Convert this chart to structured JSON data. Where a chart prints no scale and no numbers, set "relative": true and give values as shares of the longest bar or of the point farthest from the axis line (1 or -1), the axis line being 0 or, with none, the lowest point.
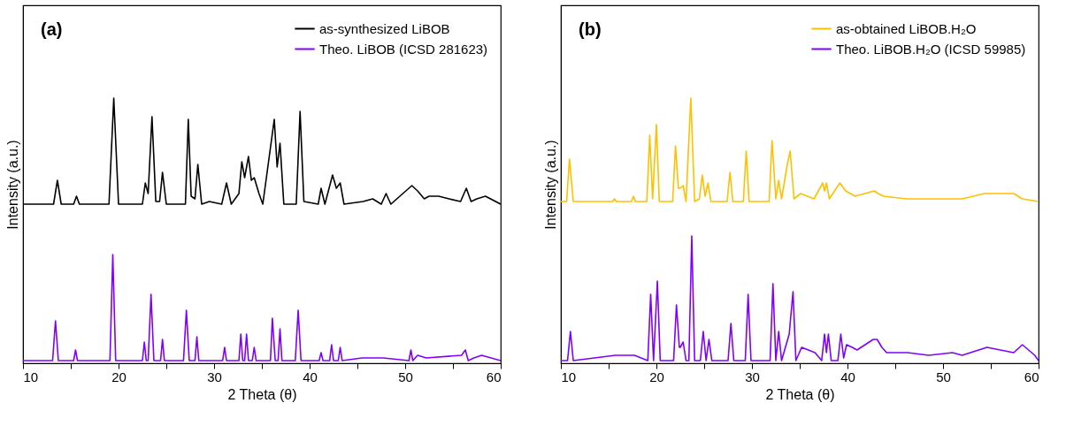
{
  "chart_data": [
    {
      "type": "line",
      "title": "(a)",
      "xlabel": "2 Theta (θ)",
      "ylabel": "Intensity (a.u.)",
      "relative": true,
      "legend": "top right",
      "xlim": [
        10,
        60
      ],
      "xticks": [
        10,
        {
          "value": 15,
          "label": null
        },
        20,
        {
          "value": 25,
          "label": null
        },
        30,
        {
          "value": 35,
          "label": null
        },
        40,
        {
          "value": 45,
          "label": null
        },
        50,
        {
          "value": 55,
          "label": null
        },
        60
      ],
      "series": [
        {
          "name": "as-synthesized LiBOB",
          "color": "#000000",
          "x": [
            10,
            13.2,
            13.6,
            14,
            15.3,
            15.6,
            15.9,
            19,
            19.5,
            20,
            22.5,
            22.8,
            23.1,
            23.5,
            23.9,
            24.3,
            24.6,
            25,
            27,
            27.3,
            27.6,
            28,
            28.3,
            28.7,
            29.5,
            30.8,
            31.3,
            31.8,
            32.6,
            32.9,
            33.2,
            33.6,
            33.9,
            34.2,
            34.7,
            35.1,
            36.3,
            36.6,
            36.9,
            37.3,
            38.6,
            39,
            39.4,
            40.9,
            41.2,
            41.6,
            42.4,
            42.8,
            43.2,
            43.6,
            45.6,
            46.6,
            47.5,
            48,
            48.5,
            50.7,
            51.3,
            52,
            52.5,
            53.5,
            54.6,
            55.8,
            56.4,
            56.9,
            57.5,
            58.4,
            60
          ],
          "values": [
            0.6,
            0.6,
            0.69,
            0.6,
            0.6,
            0.63,
            0.6,
            0.6,
            1.0,
            0.6,
            0.6,
            0.68,
            0.64,
            0.93,
            0.61,
            0.61,
            0.72,
            0.6,
            0.6,
            0.92,
            0.63,
            0.62,
            0.75,
            0.6,
            0.61,
            0.6,
            0.68,
            0.6,
            0.64,
            0.76,
            0.7,
            0.78,
            0.69,
            0.7,
            0.64,
            0.6,
            0.92,
            0.74,
            0.83,
            0.6,
            0.6,
            0.95,
            0.61,
            0.6,
            0.66,
            0.6,
            0.71,
            0.66,
            0.68,
            0.6,
            0.61,
            0.62,
            0.6,
            0.64,
            0.6,
            0.67,
            0.65,
            0.62,
            0.63,
            0.63,
            0.62,
            0.61,
            0.66,
            0.61,
            0.62,
            0.63,
            0.6
          ]
        },
        {
          "name": "Theo. LiBOB (ICSD 281623)",
          "color": "#8000ff",
          "x": [
            10,
            13.1,
            13.4,
            13.7,
            15.3,
            15.5,
            15.7,
            19.1,
            19.4,
            19.7,
            22.5,
            22.7,
            22.9,
            23.1,
            23.4,
            23.7,
            24.4,
            24.6,
            24.8,
            26.8,
            27.1,
            27.4,
            28,
            28.2,
            28.4,
            30.9,
            31.1,
            31.3,
            32.6,
            32.8,
            33,
            33.2,
            33.4,
            33.6,
            34,
            34.2,
            34.4,
            35.9,
            36.1,
            36.4,
            36.7,
            36.9,
            37.1,
            38.5,
            38.8,
            39.1,
            41,
            41.2,
            41.4,
            42.1,
            42.3,
            42.5,
            43,
            43.2,
            43.4,
            45.5,
            47.7,
            50.4,
            50.6,
            50.8,
            51.3,
            52.2,
            55.9,
            56.3,
            56.6,
            57.2,
            58,
            60
          ],
          "values": [
            0.01,
            0.01,
            0.16,
            0.01,
            0.01,
            0.05,
            0.01,
            0.01,
            0.41,
            0.01,
            0.01,
            0.08,
            0.01,
            0.01,
            0.26,
            0.01,
            0.01,
            0.09,
            0.01,
            0.01,
            0.2,
            0.01,
            0.01,
            0.1,
            0.01,
            0.01,
            0.06,
            0.01,
            0.01,
            0.11,
            0.01,
            0.01,
            0.11,
            0.01,
            0.01,
            0.06,
            0.01,
            0.01,
            0.17,
            0.01,
            0.01,
            0.13,
            0.01,
            0.01,
            0.2,
            0.01,
            0.01,
            0.04,
            0.01,
            0.01,
            0.07,
            0.01,
            0.01,
            0.06,
            0.01,
            0.02,
            0.02,
            0.01,
            0.05,
            0.01,
            0.03,
            0.02,
            0.03,
            0.05,
            0.01,
            0.02,
            0.03,
            0.01
          ]
        }
      ]
    },
    {
      "type": "line",
      "title": "(b)",
      "xlabel": "2 Theta (θ)",
      "ylabel": "Intensity (a.u.)",
      "relative": true,
      "legend": "top right",
      "xlim": [
        10,
        60
      ],
      "xticks": [
        10,
        {
          "value": 15,
          "label": null
        },
        20,
        {
          "value": 25,
          "label": null
        },
        30,
        {
          "value": 35,
          "label": null
        },
        40,
        {
          "value": 45,
          "label": null
        },
        50,
        {
          "value": 55,
          "label": null
        },
        60
      ],
      "series": [
        {
          "name": "as-obtained LiBOB.H₂O",
          "color": "#ffc000",
          "x": [
            10,
            10.6,
            10.9,
            11.3,
            15.4,
            15.6,
            15.8,
            17.4,
            17.6,
            17.8,
            19,
            19.3,
            19.6,
            20,
            20.3,
            21.7,
            22,
            22.3,
            22.5,
            22.8,
            23.1,
            23.6,
            24,
            24.5,
            24.8,
            25.1,
            25.4,
            25.7,
            27.4,
            27.7,
            28,
            29.1,
            29.4,
            29.7,
            31.8,
            32.1,
            32.5,
            32.8,
            33.1,
            33.7,
            34,
            34.4,
            35.1,
            36.5,
            37.4,
            37.6,
            37.8,
            38.1,
            39.2,
            39.8,
            40.3,
            40.8,
            42.8,
            43.2,
            43.8,
            46.2,
            48.3,
            50.8,
            52,
            54.3,
            57.4,
            58.3,
            60
          ],
          "values": [
            0.61,
            0.61,
            0.77,
            0.61,
            0.61,
            0.62,
            0.61,
            0.61,
            0.63,
            0.61,
            0.61,
            0.86,
            0.62,
            0.9,
            0.61,
            0.61,
            0.82,
            0.66,
            0.66,
            0.67,
            0.61,
            1.0,
            0.61,
            0.62,
            0.71,
            0.63,
            0.68,
            0.61,
            0.61,
            0.72,
            0.61,
            0.61,
            0.8,
            0.61,
            0.61,
            0.84,
            0.62,
            0.69,
            0.62,
            0.75,
            0.8,
            0.62,
            0.64,
            0.62,
            0.68,
            0.65,
            0.68,
            0.62,
            0.68,
            0.65,
            0.64,
            0.63,
            0.65,
            0.64,
            0.63,
            0.62,
            0.62,
            0.62,
            0.62,
            0.64,
            0.64,
            0.62,
            0.61
          ]
        },
        {
          "name": "Theo. LiBOB.H₂O (ICSD 59985)",
          "color": "#8000ff",
          "x": [
            10,
            10.7,
            11,
            11.3,
            15.7,
            17.7,
            19.1,
            19.4,
            19.7,
            20.1,
            20.4,
            21.8,
            22.1,
            22.4,
            22.5,
            22.8,
            23.1,
            23.4,
            23.7,
            24,
            24.6,
            24.9,
            25.2,
            25.5,
            25.8,
            27.5,
            27.8,
            28.1,
            29.3,
            29.6,
            29.9,
            31.9,
            32.2,
            32.5,
            32.8,
            33.1,
            33.9,
            34.3,
            34.6,
            35.2,
            36.6,
            37.3,
            37.6,
            37.8,
            38,
            38.3,
            39,
            39.3,
            39.6,
            39.9,
            40.5,
            41,
            42.7,
            43.1,
            43.6,
            44.1,
            46.3,
            48.5,
            51,
            52,
            54.6,
            57.4,
            58.3,
            59.6,
            60
          ],
          "values": [
            0.01,
            0.01,
            0.12,
            0.01,
            0.03,
            0.03,
            0.01,
            0.26,
            0.01,
            0.31,
            0.01,
            0.01,
            0.22,
            0.06,
            0.06,
            0.08,
            0.01,
            0.01,
            0.48,
            0.01,
            0.01,
            0.12,
            0.01,
            0.09,
            0.01,
            0.01,
            0.15,
            0.01,
            0.01,
            0.26,
            0.01,
            0.01,
            0.3,
            0.01,
            0.12,
            0.01,
            0.11,
            0.27,
            0.01,
            0.06,
            0.04,
            0.01,
            0.11,
            0.04,
            0.11,
            0.01,
            0.01,
            0.11,
            0.02,
            0.07,
            0.06,
            0.05,
            0.09,
            0.09,
            0.06,
            0.04,
            0.04,
            0.03,
            0.04,
            0.03,
            0.06,
            0.04,
            0.07,
            0.03,
            0.01
          ]
        }
      ]
    }
  ]
}
